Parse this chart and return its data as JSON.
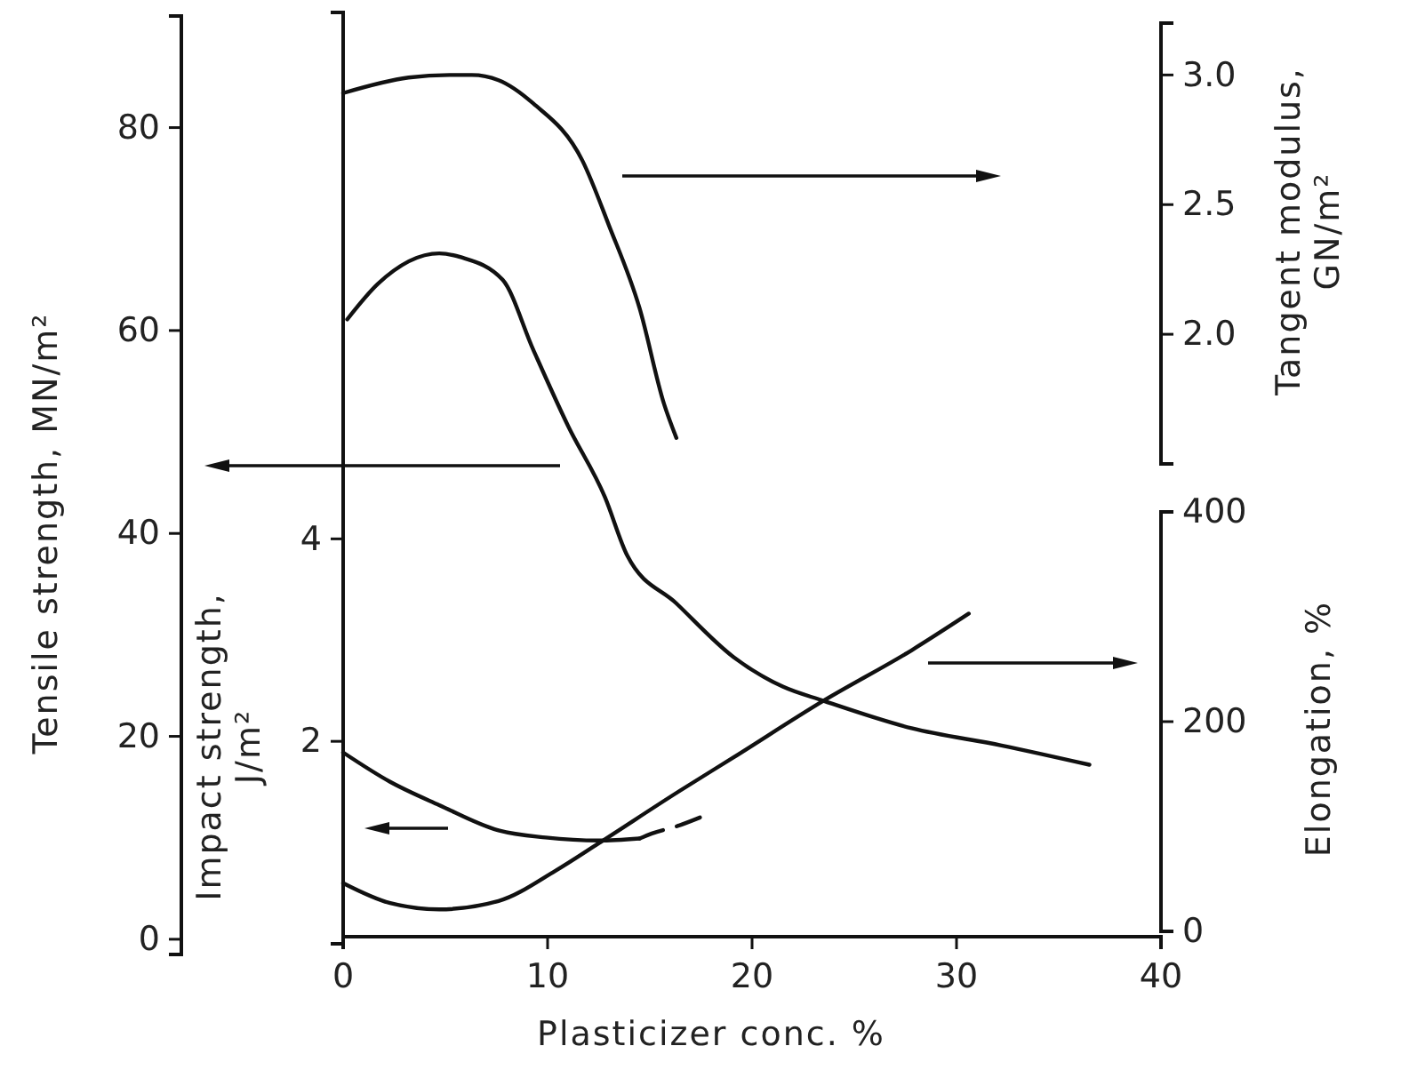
{
  "chart_data": [
    {
      "type": "line",
      "xlabel": "Plasticizer conc. %",
      "ylabel": "Tensile strength, MN/m²",
      "y2label": "Elongation, %",
      "y3label": "Impact strength, J/m²",
      "xlim": [
        0,
        40
      ],
      "xticks": [
        0,
        10,
        20,
        30,
        40
      ],
      "ylim": [
        -1.5,
        91
      ],
      "yticks": [
        0,
        20,
        40,
        60,
        80
      ],
      "y2lim": [
        0,
        400
      ],
      "y2ticks": [
        0,
        200,
        400
      ],
      "y3lim": [
        0,
        9.2
      ],
      "y3ticks": [
        2,
        4
      ],
      "marker": "none",
      "line_style": "solid",
      "series": [
        {
          "color": "#111111",
          "axis": "y",
          "x": [
            0.2,
            1.7,
            4.7,
            5.8,
            7.8,
            9.3,
            11,
            12.8,
            13.9,
            16.3,
            19.1,
            21.5,
            23.5,
            27.8,
            32.2,
            36.5
          ],
          "values": [
            61.1,
            64.6,
            67.6,
            67.2,
            65,
            58.1,
            50.6,
            43.6,
            37.8,
            33.1,
            27.8,
            24.9,
            23.5,
            20.8,
            19.1,
            17.2
          ]
        },
        {
          "color": "#111111",
          "axis": "y2",
          "x": [
            0,
            2.3,
            4.7,
            7.6,
            10.4,
            12.5,
            16.3,
            19.1,
            23.5,
            27.8,
            30.6
          ],
          "values": [
            46,
            27,
            21,
            29,
            58,
            84,
            132,
            166,
            220,
            268,
            303
          ]
        },
        {
          "color": "#111111",
          "axis": "y3",
          "x": [
            0,
            2.3,
            4.7,
            7.6,
            9.9,
            12.5,
            14.5
          ],
          "values": [
            1.89,
            1.6,
            1.37,
            1.12,
            1.05,
            1.02,
            1.04
          ]
        },
        {
          "color": "#111111",
          "axis": "y3",
          "line_style": "dashed",
          "x": [
            14.5,
            15.1,
            16.3,
            17.6
          ],
          "values": [
            1.04,
            1.09,
            1.16,
            1.26
          ]
        }
      ]
    },
    {
      "type": "line",
      "ylabel": "Tangent modulus, GN/m²",
      "xlim": [
        0,
        40
      ],
      "ylim": [
        1.5,
        3.2
      ],
      "yticks": [
        {
          "value": 2,
          "label": "2.0"
        },
        {
          "value": 2.5,
          "label": "2.5"
        },
        {
          "value": 3,
          "label": "3.0"
        }
      ],
      "tick_labels": "y",
      "marker": "none",
      "line_style": "solid",
      "series": [
        {
          "color": "#111111",
          "x": [
            0,
            3.2,
            5.2,
            6.3,
            7.6,
            9.3,
            11.7,
            13,
            14.5,
            15.7,
            16.3
          ],
          "values": [
            2.93,
            2.99,
            3.0,
            3.0,
            2.98,
            2.89,
            2.67,
            2.42,
            2.1,
            1.73,
            1.6
          ]
        }
      ]
    }
  ]
}
